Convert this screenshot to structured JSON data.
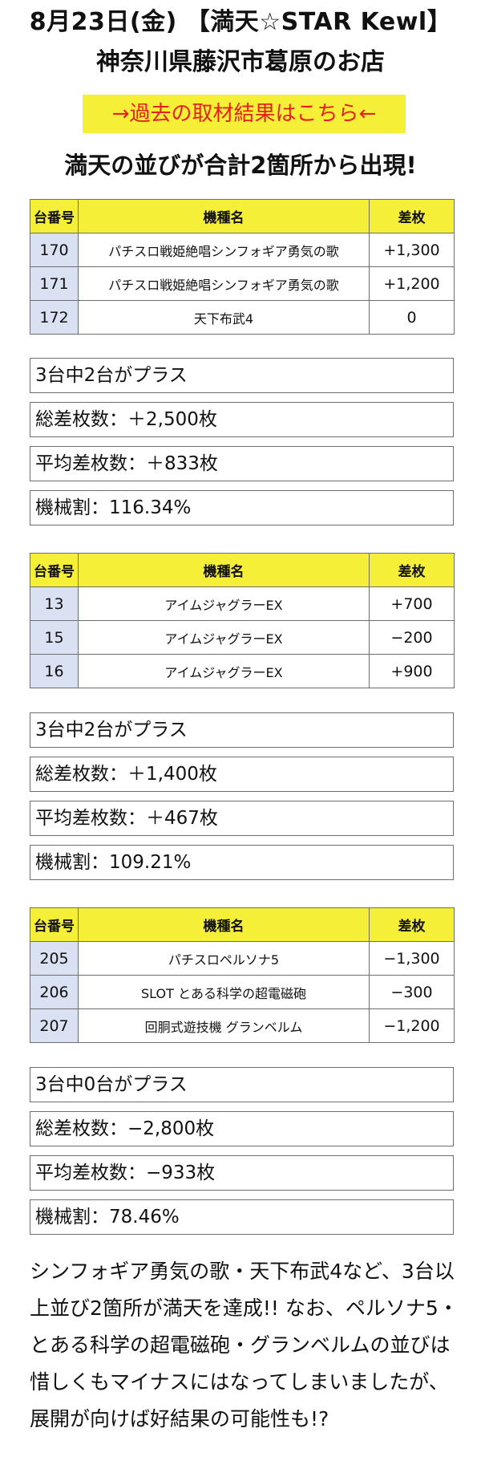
{
  "header": {
    "title1": "8月23日(金) 【満天☆STAR Kewl】",
    "title2": "神奈川県藤沢市葛原のお店",
    "link": "→過去の取材結果はこちら←",
    "lead": "満天の並びが合計2箇所から出現!"
  },
  "colors": {
    "header_bg": "#f6ef37",
    "num_cell_bg": "#d9e1f2",
    "link_text": "#e8201c"
  },
  "table_headers": {
    "num": "台番号",
    "machine": "機種名",
    "diff": "差枚"
  },
  "groups": [
    {
      "rows": [
        {
          "num": "170",
          "machine": "パチスロ戦姫絶唱シンフォギア勇気の歌",
          "diff": "+1,300"
        },
        {
          "num": "171",
          "machine": "パチスロ戦姫絶唱シンフォギア勇気の歌",
          "diff": "+1,200"
        },
        {
          "num": "172",
          "machine": "天下布武4",
          "diff": "0"
        }
      ],
      "summary": [
        "3台中2台がプラス",
        "総差枚数：＋2,500枚",
        "平均差枚数：＋833枚",
        "機械割：116.34%"
      ]
    },
    {
      "rows": [
        {
          "num": "13",
          "machine": "アイムジャグラーEX",
          "diff": "+700"
        },
        {
          "num": "15",
          "machine": "アイムジャグラーEX",
          "diff": "−200"
        },
        {
          "num": "16",
          "machine": "アイムジャグラーEX",
          "diff": "+900"
        }
      ],
      "summary": [
        "3台中2台がプラス",
        "総差枚数：＋1,400枚",
        "平均差枚数：＋467枚",
        "機械割：109.21%"
      ]
    },
    {
      "rows": [
        {
          "num": "205",
          "machine": "パチスロペルソナ5",
          "diff": "−1,300"
        },
        {
          "num": "206",
          "machine": "SLOT とある科学の超電磁砲",
          "diff": "−300"
        },
        {
          "num": "207",
          "machine": "回胴式遊技機 グランベルム",
          "diff": "−1,200"
        }
      ],
      "summary": [
        "3台中0台がプラス",
        "総差枚数：−2,800枚",
        "平均差枚数：−933枚",
        "機械割：78.46%"
      ]
    }
  ],
  "paragraph": "シンフォギア勇気の歌・天下布武4など、3台以上並び2箇所が満天を達成!! なお、ペルソナ5・とある科学の超電磁砲・グランベルムの並びは惜しくもマイナスにはなってしまいましたが、展開が向けば好結果の可能性も!?"
}
